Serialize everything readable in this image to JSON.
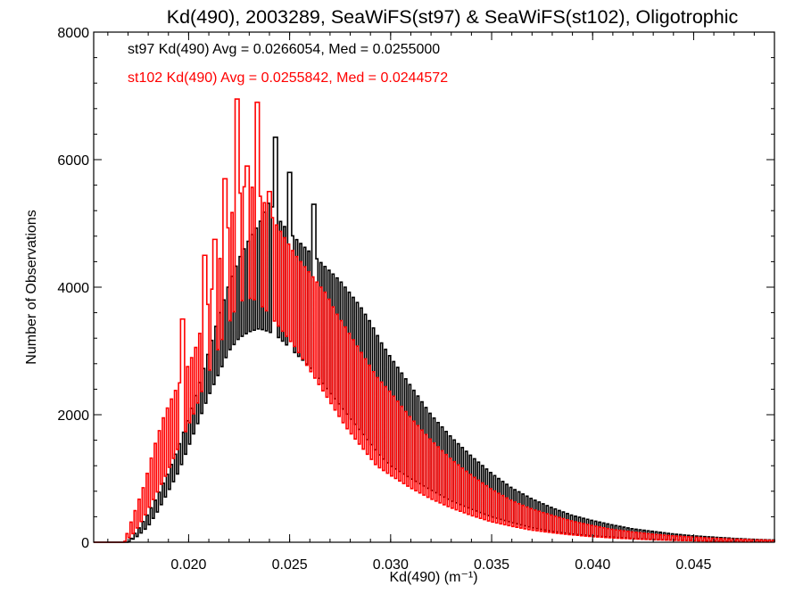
{
  "chart_data": {
    "type": "bar",
    "title": "Kd(490), 2003289, SeaWiFS(st97) & SeaWiFS(st102), Oligotrophic",
    "xlabel": "Kd(490) (m⁻¹)",
    "ylabel": "Number of Observations",
    "xlim": [
      0.0153,
      0.049
    ],
    "ylim": [
      0,
      8000
    ],
    "x_ticks": [
      {
        "value": 0.02,
        "label": "0.020"
      },
      {
        "value": 0.025,
        "label": "0.025"
      },
      {
        "value": 0.03,
        "label": "0.030"
      },
      {
        "value": 0.035,
        "label": "0.035"
      },
      {
        "value": 0.04,
        "label": "0.040"
      },
      {
        "value": 0.045,
        "label": "0.045"
      }
    ],
    "y_ticks": [
      {
        "value": 0,
        "label": "0"
      },
      {
        "value": 2000,
        "label": "2000"
      },
      {
        "value": 4000,
        "label": "4000"
      },
      {
        "value": 6000,
        "label": "6000"
      },
      {
        "value": 8000,
        "label": "8000"
      }
    ],
    "grid": false,
    "legend_position": "top-left",
    "annotations": [
      {
        "text": "st97 Kd(490) Avg = 0.0266054, Med = 0.0255000",
        "color": "#000000"
      },
      {
        "text": "st102 Kd(490) Avg = 0.0255842, Med = 0.0244572",
        "color": "#ff0000"
      }
    ],
    "series": [
      {
        "color": "#000000",
        "envelope_x": [
          0.0153,
          0.017,
          0.0175,
          0.018,
          0.0185,
          0.019,
          0.0195,
          0.02,
          0.0205,
          0.021,
          0.0215,
          0.022,
          0.0225,
          0.023,
          0.0235,
          0.024,
          0.0245,
          0.025,
          0.0255,
          0.026,
          0.0265,
          0.027,
          0.0275,
          0.028,
          0.0285,
          0.029,
          0.0295,
          0.03,
          0.031,
          0.032,
          0.033,
          0.034,
          0.035,
          0.036,
          0.037,
          0.038,
          0.039,
          0.04,
          0.041,
          0.042,
          0.043,
          0.044,
          0.045,
          0.046,
          0.047,
          0.048,
          0.049
        ],
        "envelope_high": [
          0,
          0,
          200,
          450,
          750,
          1100,
          1500,
          1950,
          2450,
          3000,
          3550,
          4050,
          4450,
          4750,
          5000,
          5350,
          5050,
          4850,
          4700,
          4550,
          4400,
          4250,
          4100,
          3900,
          3700,
          3450,
          3150,
          2900,
          2450,
          2000,
          1650,
          1350,
          1080,
          850,
          680,
          540,
          420,
          340,
          270,
          210,
          170,
          130,
          100,
          80,
          60,
          45,
          35
        ],
        "envelope_low": [
          0,
          0,
          100,
          250,
          500,
          800,
          1100,
          1500,
          1900,
          2300,
          2650,
          3000,
          3200,
          3300,
          3350,
          3300,
          3200,
          3050,
          2900,
          2750,
          2550,
          2350,
          2150,
          1950,
          1750,
          1550,
          1350,
          1200,
          1000,
          820,
          650,
          520,
          400,
          310,
          230,
          170,
          130,
          100,
          80,
          60,
          45,
          35,
          25,
          20,
          15,
          10,
          8
        ],
        "peaks": [
          {
            "x": 0.0243,
            "y": 6350
          },
          {
            "x": 0.025,
            "y": 5800
          },
          {
            "x": 0.0262,
            "y": 5300
          }
        ]
      },
      {
        "color": "#ff0000",
        "envelope_x": [
          0.0153,
          0.0168,
          0.0173,
          0.0178,
          0.0183,
          0.0188,
          0.0193,
          0.0198,
          0.0203,
          0.0208,
          0.0213,
          0.0218,
          0.0223,
          0.0228,
          0.0233,
          0.0238,
          0.0243,
          0.0248,
          0.0253,
          0.0258,
          0.0263,
          0.0268,
          0.0273,
          0.0278,
          0.0283,
          0.0288,
          0.0293,
          0.03,
          0.031,
          0.032,
          0.033,
          0.034,
          0.035,
          0.036,
          0.037,
          0.038,
          0.039,
          0.04,
          0.041,
          0.042,
          0.043,
          0.044,
          0.045,
          0.046,
          0.047,
          0.048,
          0.049
        ],
        "envelope_high": [
          0,
          0,
          450,
          900,
          1500,
          2000,
          2350,
          2650,
          3000,
          3550,
          4150,
          4750,
          5350,
          5600,
          5550,
          5300,
          5000,
          4750,
          4500,
          4300,
          4100,
          3900,
          3600,
          3350,
          3100,
          2850,
          2600,
          2350,
          1950,
          1600,
          1300,
          1050,
          830,
          650,
          520,
          420,
          330,
          260,
          200,
          160,
          125,
          100,
          80,
          62,
          48,
          38,
          30
        ],
        "envelope_low": [
          0,
          0,
          150,
          400,
          700,
          1000,
          1350,
          1700,
          2050,
          2500,
          2900,
          3300,
          3650,
          3850,
          3800,
          3650,
          3450,
          3250,
          3050,
          2800,
          2550,
          2300,
          2050,
          1800,
          1600,
          1400,
          1200,
          1050,
          850,
          680,
          540,
          420,
          320,
          250,
          190,
          150,
          115,
          88,
          68,
          52,
          40,
          30,
          24,
          18,
          13,
          10,
          8
        ],
        "peaks": [
          {
            "x": 0.0197,
            "y": 3500
          },
          {
            "x": 0.0208,
            "y": 4500
          },
          {
            "x": 0.0213,
            "y": 4750
          },
          {
            "x": 0.0218,
            "y": 5700
          },
          {
            "x": 0.0224,
            "y": 6950
          },
          {
            "x": 0.0229,
            "y": 5900
          },
          {
            "x": 0.0234,
            "y": 6900
          },
          {
            "x": 0.024,
            "y": 5500
          }
        ]
      }
    ]
  }
}
